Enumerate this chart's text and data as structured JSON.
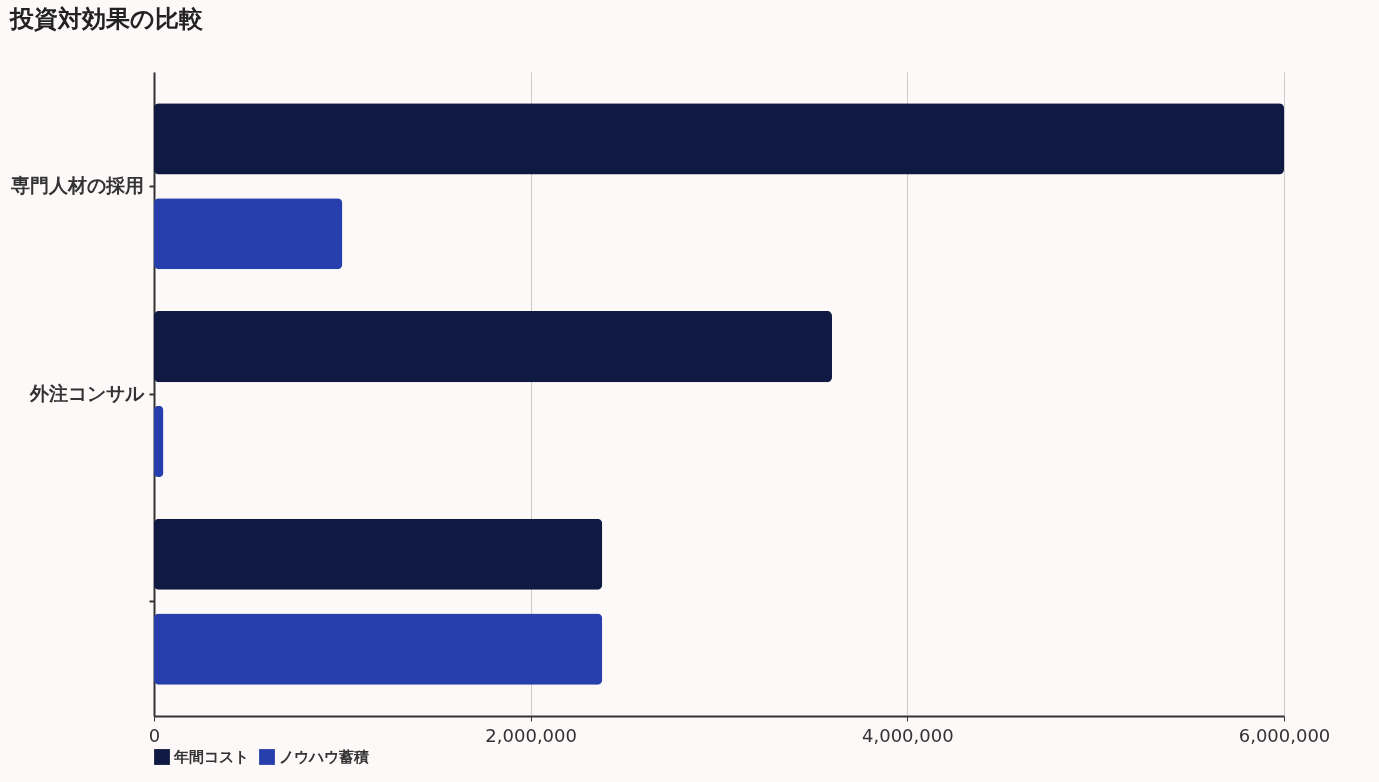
{
  "chart_data": {
    "type": "bar",
    "title": "投資対効果の比較",
    "orientation": "horizontal",
    "categories": [
      "専門人材の採用",
      "外注コンサル",
      null
    ],
    "series": [
      {
        "name": "年間コスト",
        "color": "#0f1941",
        "values": [
          6000000,
          3600000,
          2380000
        ]
      },
      {
        "name": "ノウハウ蓄積",
        "color": "#263fad",
        "values": [
          1000000,
          50000,
          2380000
        ]
      }
    ],
    "xlim": [
      0,
      6000000
    ],
    "xticks": [
      0,
      {
        "value": 2000000,
        "label": "2,000,000"
      },
      {
        "value": 4000000,
        "label": "4,000,000"
      },
      {
        "value": 6000000,
        "label": "6,000,000"
      }
    ],
    "grid": "x",
    "legend": "bottom"
  }
}
